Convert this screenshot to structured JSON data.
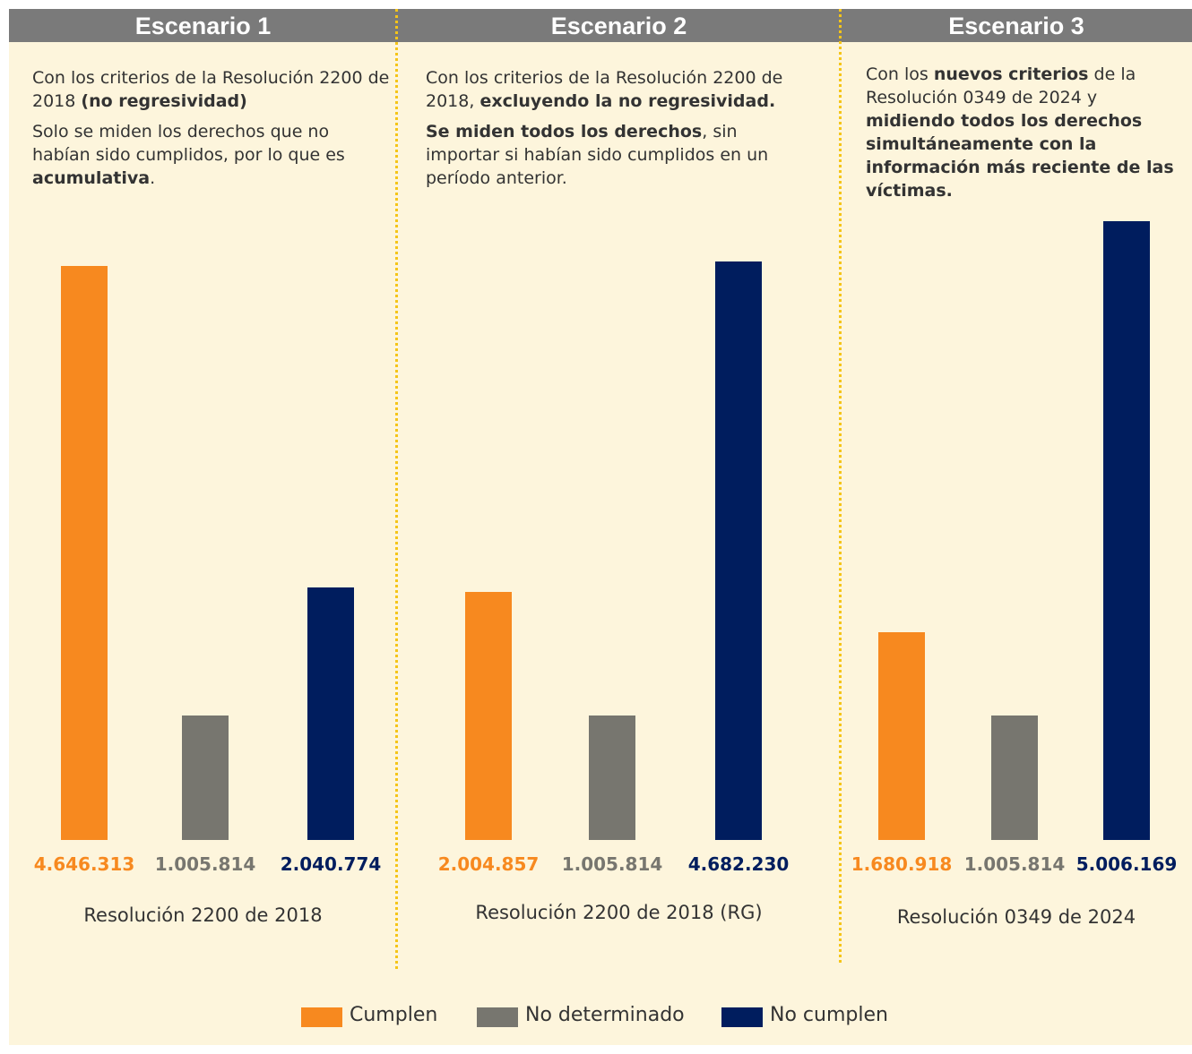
{
  "chart_data": [
    {
      "type": "bar",
      "title": "Escenario 1",
      "description": [
        [
          {
            "text": "Con los criterios de la Resolución 2200 de 2018 ",
            "bold": false
          },
          {
            "text": "(no regresividad)",
            "bold": true
          }
        ],
        [
          {
            "text": "Solo se miden los derechos que no habían sido cumplidos, por lo que es ",
            "bold": false
          },
          {
            "text": "acumulativa",
            "bold": true
          },
          {
            "text": ".",
            "bold": false
          }
        ]
      ],
      "values": [
        4646313,
        1005814,
        2040774
      ],
      "value_labels": [
        "4.646.313",
        "1.005.814",
        "2.040.774"
      ],
      "colors": [
        "#f7891f",
        "#77766f",
        "#001d5e"
      ],
      "x_label": "Resolución 2200 de 2018"
    },
    {
      "type": "bar",
      "title": "Escenario 2",
      "description": [
        [
          {
            "text": "Con los criterios de la Resolución 2200 de 2018, ",
            "bold": false
          },
          {
            "text": "excluyendo la no regresividad.",
            "bold": true
          }
        ],
        [
          {
            "text": "Se miden todos los derechos",
            "bold": true
          },
          {
            "text": ", sin importar si habían sido cumplidos en un período anterior.",
            "bold": false
          }
        ]
      ],
      "values": [
        2004857,
        1005814,
        4682230
      ],
      "value_labels": [
        "2.004.857",
        "1.005.814",
        "4.682.230"
      ],
      "colors": [
        "#f7891f",
        "#77766f",
        "#001d5e"
      ],
      "x_label": "Resolución 2200 de 2018 (RG)"
    },
    {
      "type": "bar",
      "title": "Escenario 3",
      "description": [
        [
          {
            "text": "Con los ",
            "bold": false
          },
          {
            "text": "nuevos criterios",
            "bold": true
          },
          {
            "text": " de la Resolución 0349 de 2024 y ",
            "bold": false
          },
          {
            "text": "midiendo todos los derechos simultáneamente con la información más reciente de las víctimas.",
            "bold": true
          }
        ]
      ],
      "values": [
        1680918,
        1005814,
        5006169
      ],
      "value_labels": [
        "1.680.918",
        "1.005.814",
        "5.006.169"
      ],
      "colors": [
        "#f7891f",
        "#77766f",
        "#001d5e"
      ],
      "x_label": "Resolución 0349 de 2024"
    }
  ],
  "legend": [
    {
      "name": "Cumplen",
      "color": "#f7891f"
    },
    {
      "name": "No determinado",
      "color": "#77766f"
    },
    {
      "name": "No cumplen",
      "color": "#001d5e"
    }
  ]
}
